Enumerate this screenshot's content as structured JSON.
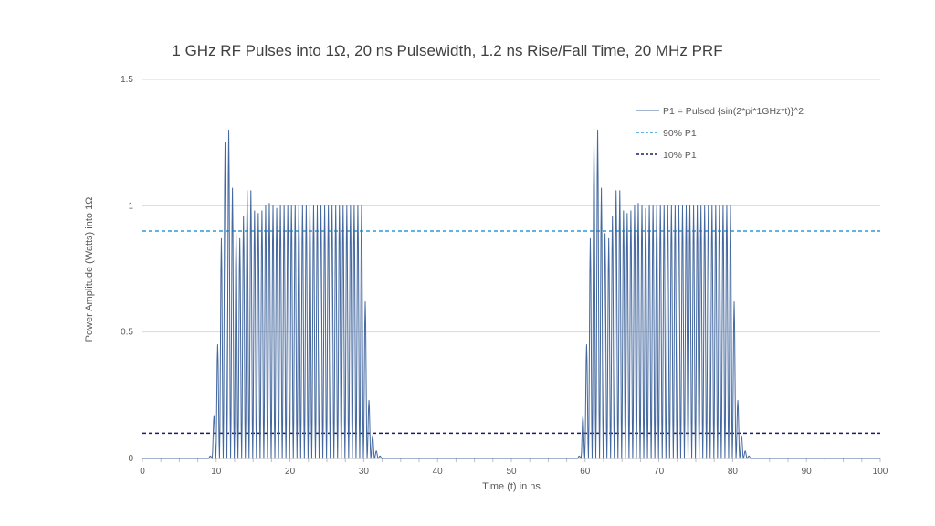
{
  "chart_data": {
    "type": "line",
    "title": "1 GHz RF Pulses into 1Ω, 20 ns Pulsewidth, 1.2 ns Rise/Fall Time, 20 MHz PRF",
    "xlabel": "Time (t) in ns",
    "ylabel": "Power Amplitude (Watts) into 1Ω",
    "xlim": [
      0,
      100
    ],
    "ylim": [
      0,
      1.5
    ],
    "xticks": [
      "0",
      "10",
      "20",
      "30",
      "40",
      "50",
      "60",
      "70",
      "80",
      "90",
      "100"
    ],
    "yticks": [
      "0",
      "0.5",
      "1",
      "1.5"
    ],
    "grid": "horizontal",
    "legend_position": "top-right",
    "series": [
      {
        "name": "P1 = Pulsed {sin(2*pi*1GHz*t)}^2",
        "color": "#44689f",
        "pulse_starts_ns": [
          9.2,
          59.2
        ],
        "peak_spacing_ns": 0.5,
        "pulse_peaks": [
          0.01,
          0.17,
          0.45,
          0.87,
          1.25,
          1.3,
          1.07,
          0.89,
          0.87,
          0.96,
          1.06,
          1.06,
          0.98,
          0.97,
          0.98,
          1.0,
          1.01,
          1.0,
          0.99,
          1.0,
          1.0,
          1.0,
          1.0,
          1.0,
          1.0,
          1.0,
          1.0,
          1.0,
          1.0,
          1.0,
          1.0,
          1.0,
          1.0,
          1.0,
          1.0,
          1.0,
          1.0,
          1.0,
          1.0,
          1.0,
          1.0,
          1.0,
          0.62,
          0.23,
          0.09,
          0.03,
          0.01
        ]
      },
      {
        "name": "90% P1",
        "value": 0.9,
        "color": "#2f9bd6",
        "style": "dashed"
      },
      {
        "name": "10% P1",
        "value": 0.1,
        "color": "#1c1c6b",
        "style": "dashed"
      }
    ]
  }
}
